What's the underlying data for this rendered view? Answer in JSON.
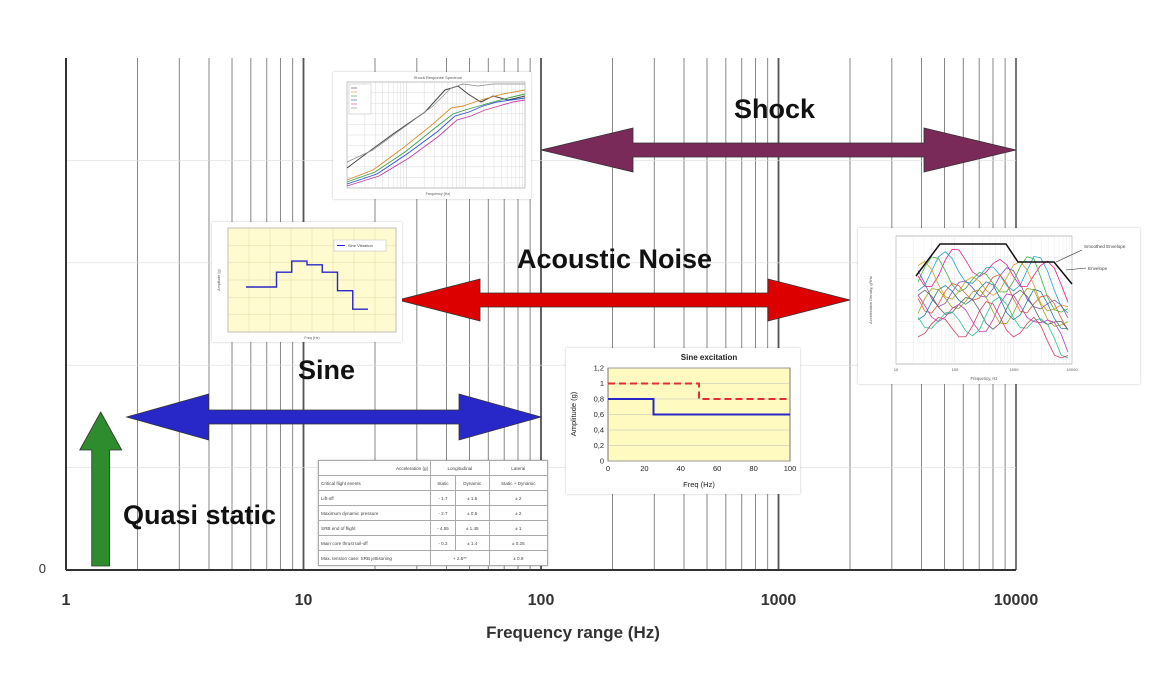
{
  "main_axis": {
    "xlabel": "Frequency range (Hz)",
    "scale": "log",
    "xlim": [
      1,
      10000
    ],
    "x_ticks": [
      1,
      10,
      100,
      1000,
      10000
    ],
    "x_tick_labels": [
      "1",
      "10",
      "100",
      "1000",
      "10000"
    ],
    "y_tick_label": "0",
    "grid": true
  },
  "chart_data": {
    "type": "range",
    "xlabel": "Frequency range (Hz)",
    "scale": "log",
    "xlim": [
      1,
      10000
    ],
    "ranges": [
      {
        "name": "Quasi static",
        "arrow": "vertical",
        "x_pos": 1.4,
        "color": "#2e8b2e"
      },
      {
        "name": "Sine",
        "x_start": 1.8,
        "x_end": 100,
        "color": "#2828c8"
      },
      {
        "name": "Acoustic Noise",
        "x_start": 25,
        "x_end": 2000,
        "color": "#dd0000"
      },
      {
        "name": "Shock",
        "x_start": 100,
        "x_end": 10000,
        "color": "#7a2a58"
      }
    ]
  },
  "labels": {
    "shock": "Shock",
    "acoustic": "Acoustic Noise",
    "sine": "Sine",
    "quasi": "Quasi static"
  },
  "colors": {
    "shock": "#7a2a58",
    "acoustic": "#dd0000",
    "sine": "#2828c8",
    "quasi": "#2e8b2e"
  },
  "sine_excitation": {
    "type": "step-line",
    "title": "Sine excitation",
    "xlabel": "Freq (Hz)",
    "ylabel": "Amplitude (g)",
    "xlim": [
      0,
      100
    ],
    "ylim": [
      0,
      1.2
    ],
    "x_ticks": [
      0,
      20,
      40,
      60,
      80,
      100
    ],
    "y_ticks": [
      0,
      0.2,
      0.4,
      0.6,
      0.8,
      1,
      1.2
    ],
    "y_tick_labels": [
      "0",
      "0,2",
      "0,4",
      "0,6",
      "0,8",
      "1",
      "1,2"
    ],
    "series": [
      {
        "style": "dashed",
        "color": "#e03030",
        "points": [
          [
            0,
            1
          ],
          [
            50,
            1
          ],
          [
            50,
            0.8
          ],
          [
            100,
            0.8
          ]
        ]
      },
      {
        "style": "solid",
        "color": "#2828c8",
        "points": [
          [
            0,
            0.8
          ],
          [
            25,
            0.8
          ],
          [
            25,
            0.6
          ],
          [
            100,
            0.6
          ]
        ]
      }
    ]
  },
  "flight_table": {
    "header_top": [
      "Acceleration (g)",
      "Longitudinal",
      "Lateral"
    ],
    "header_sub": [
      "Critical flight events",
      "Static",
      "Dynamic",
      "Static + Dynamic"
    ],
    "rows": [
      [
        "Lift-off",
        "- 1.7",
        "± 1.5",
        "± 2"
      ],
      [
        "Maximum dynamic pressure",
        "- 2.7",
        "± 0.5",
        "± 2"
      ],
      [
        "SRB end of flight",
        "- 4.55",
        "± 1.45",
        "± 1"
      ],
      [
        "Main core thrust tail-off",
        "- 0.2",
        "± 1.4",
        "± 0.25"
      ],
      [
        "Max. tension case: SRB jettisoning",
        "+ 2.5**",
        "",
        "± 0.9"
      ]
    ]
  },
  "acoustic_inset": {
    "legend": [
      "Smoothed Envelope",
      "Envelope"
    ],
    "xlabel": "Frequency, Hz",
    "ylabel": "Acceleration Density, g²/Hz",
    "x_tick_labels": [
      "10",
      "100",
      "1000",
      "10000"
    ]
  },
  "sine_inset": {
    "legend": "Sine Vibration",
    "xlabel": "Freq (Hz)",
    "ylabel": "Amplitude (g)",
    "step_values": [
      0.5,
      0.5,
      0.7,
      0.85,
      0.8,
      0.7,
      0.45,
      0.2
    ]
  },
  "shock_inset": {
    "title": "Shock Response Spectrum",
    "xlabel": "Frequency (Hz)"
  }
}
